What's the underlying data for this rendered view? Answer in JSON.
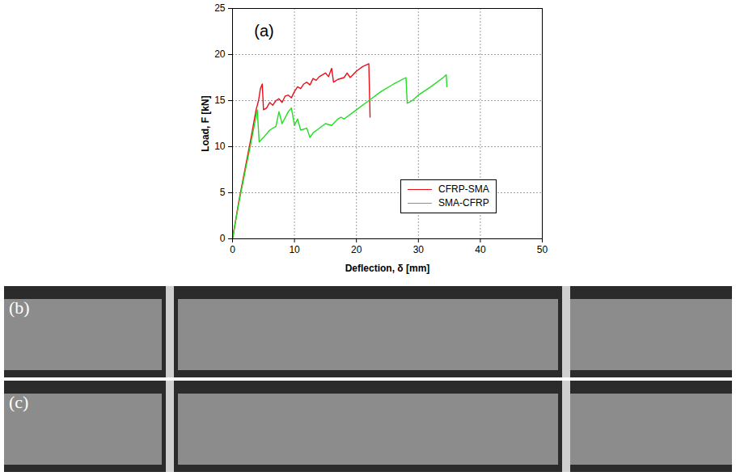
{
  "chart_data": {
    "type": "line",
    "x_label": "Deflection, δ [mm]",
    "y_label": "Load, F [kN]",
    "annotations": [
      {
        "text": "(a)",
        "x": 3.5,
        "y": 22.5
      }
    ],
    "xlim": [
      0,
      50
    ],
    "xticks": [
      0,
      10,
      20,
      30,
      40,
      50
    ],
    "ylim": [
      0,
      25
    ],
    "yticks": [
      0,
      5,
      10,
      15,
      20,
      25
    ],
    "grid": true,
    "legend": "lower right",
    "series": [
      {
        "name": "CFRP-SMA",
        "color": "#e8101a",
        "x": [
          0,
          1,
          2,
          3,
          3.8,
          4.2,
          4.5,
          4.8,
          5,
          5.5,
          6,
          6.5,
          7,
          7.5,
          8,
          8.5,
          9,
          9.5,
          10,
          10.5,
          11,
          11.5,
          12,
          12.5,
          13,
          13.5,
          14,
          15,
          15.5,
          16,
          16.3,
          17,
          18,
          18.5,
          19,
          20,
          21,
          22,
          22.2
        ],
        "values": [
          0,
          4,
          7.5,
          11,
          14,
          15,
          16.3,
          16.8,
          14,
          14.2,
          14.8,
          14.5,
          15,
          15.2,
          14.8,
          15.5,
          15.6,
          15.3,
          16,
          16.5,
          16.3,
          16.8,
          17,
          16.7,
          17.4,
          17.2,
          17.6,
          18,
          17.6,
          18.5,
          17,
          17.3,
          17.5,
          18,
          17.5,
          18.2,
          18.7,
          19,
          13.2
        ]
      },
      {
        "name": "SMA-CFRP",
        "color": "#22dd22",
        "x": [
          0,
          1,
          2,
          3,
          4,
          4.3,
          5,
          6,
          7,
          7.5,
          8,
          9,
          9.5,
          10,
          10.5,
          11,
          12,
          12.5,
          13,
          14,
          15,
          16,
          17,
          17.5,
          18,
          20,
          22,
          24,
          26,
          28,
          28.2,
          29,
          30,
          32,
          34,
          34.5,
          34.6
        ],
        "values": [
          0,
          3.8,
          7.2,
          10.5,
          14,
          10.5,
          11,
          11.8,
          12.2,
          13.8,
          12.5,
          13.8,
          14.2,
          12.3,
          13,
          11.8,
          12,
          11,
          11.5,
          12,
          12.5,
          12.3,
          13,
          13.2,
          13,
          14,
          15,
          16,
          16.8,
          17.5,
          14.7,
          15,
          15.6,
          16.5,
          17.5,
          17.8,
          16.5
        ]
      }
    ]
  },
  "images": [
    {
      "label": "(b)"
    },
    {
      "label": "(c)"
    }
  ]
}
